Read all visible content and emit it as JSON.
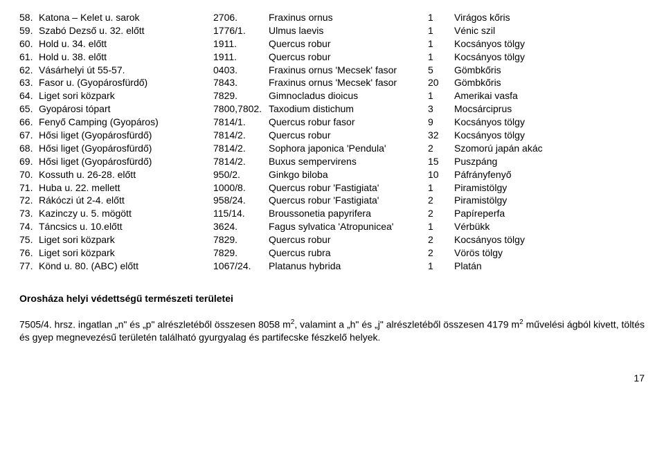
{
  "rows": [
    {
      "n": "58.",
      "loc": "Katona – Kelet u. sarok",
      "hrsz": "2706.",
      "lat": "Fraxinus ornus",
      "qty": "1",
      "hun": "Virágos kőris"
    },
    {
      "n": "59.",
      "loc": "Szabó Dezső u. 32. előtt",
      "hrsz": "1776/1.",
      "lat": "Ulmus laevis",
      "qty": "1",
      "hun": "Vénic szil"
    },
    {
      "n": "60.",
      "loc": "Hold u. 34. előtt",
      "hrsz": "1911.",
      "lat": "Quercus robur",
      "qty": "1",
      "hun": "Kocsányos tölgy"
    },
    {
      "n": "61.",
      "loc": "Hold u. 38. előtt",
      "hrsz": "1911.",
      "lat": "Quercus robur",
      "qty": "1",
      "hun": "Kocsányos tölgy"
    },
    {
      "n": "62.",
      "loc": "Vásárhelyi út 55-57.",
      "hrsz": "0403.",
      "lat": "Fraxinus ornus 'Mecsek' fasor",
      "qty": "5",
      "hun": "Gömbkőris"
    },
    {
      "n": "63.",
      "loc": "Fasor u. (Gyopárosfürdő)",
      "hrsz": "7843.",
      "lat": "Fraxinus ornus 'Mecsek' fasor",
      "qty": "20",
      "hun": "Gömbkőris"
    },
    {
      "n": "64.",
      "loc": "Liget sori közpark",
      "hrsz": "7829.",
      "lat": "Gimnocladus dioicus",
      "qty": "1",
      "hun": "Amerikai vasfa"
    },
    {
      "n": "65.",
      "loc": "Gyopárosi tópart",
      "hrsz": "7800,7802.",
      "lat": "Taxodium distichum",
      "qty": "3",
      "hun": "Mocsárciprus"
    },
    {
      "n": "66.",
      "loc": "Fenyő Camping (Gyopáros)",
      "hrsz": "7814/1.",
      "lat": "Quercus robur fasor",
      "qty": "9",
      "hun": "Kocsányos tölgy"
    },
    {
      "n": "67.",
      "loc": "Hősi liget (Gyopárosfürdő)",
      "hrsz": "7814/2.",
      "lat": "Quercus robur",
      "qty": "32",
      "hun": "Kocsányos tölgy"
    },
    {
      "n": "68.",
      "loc": "Hősi liget (Gyopárosfürdő)",
      "hrsz": "7814/2.",
      "lat": "Sophora japonica 'Pendula'",
      "qty": "2",
      "hun": "Szomorú japán akác"
    },
    {
      "n": "69.",
      "loc": "Hősi liget (Gyopárosfürdő)",
      "hrsz": "7814/2.",
      "lat": "Buxus sempervirens",
      "qty": "15",
      "hun": "Puszpáng"
    },
    {
      "n": "70.",
      "loc": "Kossuth u. 26-28. előtt",
      "hrsz": "950/2.",
      "lat": "Ginkgo biloba",
      "qty": "10",
      "hun": "Páfrányfenyő"
    },
    {
      "n": "71.",
      "loc": "Huba u. 22. mellett",
      "hrsz": "1000/8.",
      "lat": "Quercus robur 'Fastigiata'",
      "qty": "1",
      "hun": "Piramistölgy"
    },
    {
      "n": "72.",
      "loc": "Rákóczi út 2-4. előtt",
      "hrsz": "958/24.",
      "lat": "Quercus robur 'Fastigiata'",
      "qty": "2",
      "hun": "Piramistölgy"
    },
    {
      "n": "73.",
      "loc": "Kazinczy u. 5. mögött",
      "hrsz": "115/14.",
      "lat": "Broussonetia papyrifera",
      "qty": "2",
      "hun": "Papíreperfa"
    },
    {
      "n": "74.",
      "loc": "Táncsics u. 10.előtt",
      "hrsz": "3624.",
      "lat": "Fagus sylvatica 'Atropunicea'",
      "qty": "1",
      "hun": "Vérbükk"
    },
    {
      "n": "75.",
      "loc": "Liget sori közpark",
      "hrsz": "7829.",
      "lat": "Quercus robur",
      "qty": "2",
      "hun": "Kocsányos tölgy"
    },
    {
      "n": "76.",
      "loc": "Liget sori közpark",
      "hrsz": "7829.",
      "lat": "Quercus rubra",
      "qty": "2",
      "hun": "Vörös tölgy"
    },
    {
      "n": "77.",
      "loc": "Könd u. 80. (ABC) előtt",
      "hrsz": "1067/24.",
      "lat": "Platanus hybrida",
      "qty": "1",
      "hun": "Platán"
    }
  ],
  "section_title": "Orosháza helyi védettségű természeti területei",
  "para_parts": {
    "p1": "7505/4. hrsz. ingatlan „n\" és „p\" alrészletéből összesen 8058 m",
    "sup": "2",
    "p2": ", valamint a „h\" és „j\" alrészletéből összesen 4179 m",
    "p3": " művelési ágból kivett, töltés és gyep megnevezésű területén található gyurgyalag és partifecske fészkelő helyek."
  },
  "page_num": "17"
}
